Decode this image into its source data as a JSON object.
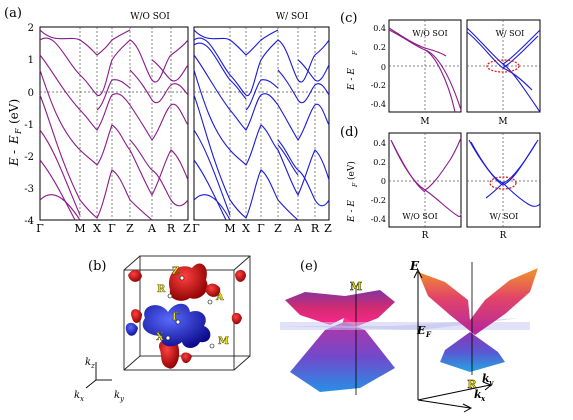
{
  "panel_a": {
    "label": "(a)",
    "ylabel_E": "E",
    "ylabel_dash": "-",
    "ylabel_EF": "E",
    "ylabel_F": "F",
    "ylabel_unit": "(eV)",
    "left_title": "W/O SOI",
    "right_title": "W/ SOI",
    "yticks": [
      "2",
      "1",
      "0",
      "-1",
      "-2",
      "-3",
      "-4"
    ],
    "left_kpoints": [
      "Γ",
      "M",
      "X",
      "Γ",
      "Z",
      "A",
      "R",
      "Z"
    ],
    "right_kpoints": [
      "Γ",
      "M",
      "X",
      "Γ",
      "Z",
      "A",
      "R",
      "Z"
    ],
    "colors": {
      "without_soi": "#8b1a8b",
      "with_soi": "#1a1adc"
    }
  },
  "panel_b": {
    "label": "(b)",
    "points": [
      "Z",
      "R",
      "A",
      "Γ",
      "X",
      "M"
    ],
    "axes": [
      "k",
      "z",
      "k",
      "x",
      "k",
      "y"
    ]
  },
  "panel_c": {
    "label": "(c)",
    "ylabel": "E - E",
    "ylabel_sub": "F",
    "yticks": [
      "0.4",
      "0.2",
      "0",
      "-0.2",
      "-0.4"
    ],
    "left_title": "W/O SOI",
    "right_title": "W/ SOI",
    "kpoint": "M"
  },
  "panel_d": {
    "label": "(d)",
    "ylabel": "E - E",
    "ylabel_sub": "F",
    "ylabel_unit": "(eV)",
    "yticks": [
      "0.4",
      "0.2",
      "0",
      "-0.2",
      "-0.4"
    ],
    "left_title": "W/O SOI",
    "right_title": "W/ SOI",
    "kpoint": "R"
  },
  "panel_e": {
    "label": "(e)",
    "E_label": "E",
    "EF_label": "E",
    "EF_sub": "F",
    "M_label": "M",
    "R_label": "R",
    "ky_label": "k",
    "ky_sub": "y",
    "kx_label": "k",
    "kx_sub": "x"
  }
}
